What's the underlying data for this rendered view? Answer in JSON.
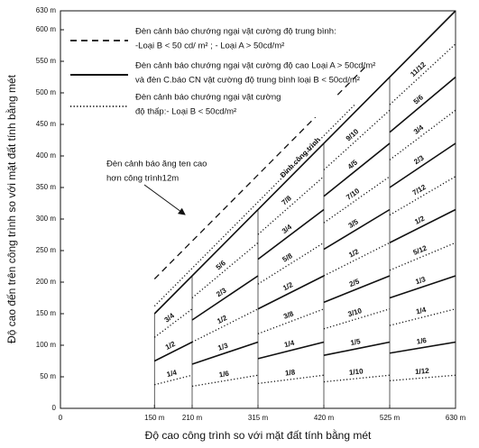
{
  "chart_data": {
    "type": "line",
    "color": "#111111",
    "x_label": "Độ cao công trình so với mặt đất tính bằng mét",
    "y_label": "Độ cao đến trên công trình so với mặt đất tính bằng mét",
    "xlim": [
      0,
      630
    ],
    "ylim": [
      0,
      630
    ],
    "xticks": [
      0,
      {
        "value": 150,
        "label": "150 m"
      },
      {
        "value": 210,
        "label": "210 m"
      },
      {
        "value": 315,
        "label": "315 m"
      },
      {
        "value": 420,
        "label": "420 m"
      },
      {
        "value": 525,
        "label": "525 m"
      },
      {
        "value": 630,
        "label": "630 m"
      }
    ],
    "yticks": [
      0,
      {
        "value": 50,
        "label": "50 m"
      },
      {
        "value": 100,
        "label": "100 m"
      },
      {
        "value": 150,
        "label": "150 m"
      },
      {
        "value": 200,
        "label": "200 m"
      },
      {
        "value": 250,
        "label": "250 m"
      },
      {
        "value": 300,
        "label": "300 m"
      },
      {
        "value": 350,
        "label": "350 m"
      },
      {
        "value": 400,
        "label": "400 m"
      },
      {
        "value": 450,
        "label": "450 m"
      },
      {
        "value": 500,
        "label": "500 m"
      },
      {
        "value": 550,
        "label": "550 m"
      },
      {
        "value": 600,
        "label": "600 m"
      },
      {
        "value": 630,
        "label": "630 m"
      }
    ],
    "legend": [
      {
        "style": "dashed",
        "lines": [
          "Đèn cảnh báo chướng ngại vật cường độ trung bình:",
          "-Loại B  < 50 cd/ m² ;   - Loại A  > 50cd/m²"
        ]
      },
      {
        "style": "solid",
        "lines": [
          "Đèn cảnh báo chướng ngại vật cường độ  cao Loại A > 50cd/m²",
          "và đèn C.báo CN vật cường độ  trung bình loại B < 50cd/m²"
        ]
      },
      {
        "style": "dotted",
        "lines": [
          "Đèn cảnh báo chướng ngại vật cường",
          "độ  thấp:- Loại B < 50cd/m²"
        ]
      }
    ],
    "annotation": [
      "Đèn cảnh báo ăng ten cao",
      "hơn công trình12m"
    ],
    "series": [
      {
        "name": "Đỉnh công trình",
        "style": "solid",
        "x": [
          150,
          630
        ],
        "values": [
          150,
          630
        ]
      },
      {
        "style": "dashed",
        "x": [
          150,
          490
        ],
        "values": [
          205,
          545
        ]
      },
      {
        "style": "dotted",
        "x": [
          150,
          470
        ],
        "values": [
          162,
          482
        ]
      },
      {
        "name": "3/4",
        "style": "dotted",
        "x": [
          150,
          210
        ],
        "values": [
          112.5,
          157.5
        ]
      },
      {
        "name": "1/2",
        "style": "solid",
        "x": [
          150,
          210
        ],
        "values": [
          75,
          105
        ]
      },
      {
        "name": "1/4",
        "style": "dotted",
        "x": [
          150,
          210
        ],
        "values": [
          37.5,
          52.5
        ]
      },
      {
        "name": "5/6",
        "style": "dotted",
        "x": [
          210,
          315
        ],
        "values": [
          175,
          262.5
        ]
      },
      {
        "name": "2/3",
        "style": "solid",
        "x": [
          210,
          315
        ],
        "values": [
          140,
          210
        ]
      },
      {
        "name": "1/2",
        "style": "dotted",
        "x": [
          210,
          315
        ],
        "values": [
          105,
          157.5
        ]
      },
      {
        "name": "1/3",
        "style": "solid",
        "x": [
          210,
          315
        ],
        "values": [
          70,
          105
        ]
      },
      {
        "name": "1/6",
        "style": "dotted",
        "x": [
          210,
          315
        ],
        "values": [
          35,
          52.5
        ]
      },
      {
        "name": "7/8",
        "style": "dotted",
        "x": [
          315,
          420
        ],
        "values": [
          275.6,
          367.5
        ]
      },
      {
        "name": "3/4",
        "style": "solid",
        "x": [
          315,
          420
        ],
        "values": [
          236.3,
          315
        ]
      },
      {
        "name": "5/8",
        "style": "dotted",
        "x": [
          315,
          420
        ],
        "values": [
          196.9,
          262.5
        ]
      },
      {
        "name": "1/2",
        "style": "solid",
        "x": [
          315,
          420
        ],
        "values": [
          157.5,
          210
        ]
      },
      {
        "name": "3/8",
        "style": "dotted",
        "x": [
          315,
          420
        ],
        "values": [
          118.1,
          157.5
        ]
      },
      {
        "name": "1/4",
        "style": "solid",
        "x": [
          315,
          420
        ],
        "values": [
          78.8,
          105
        ]
      },
      {
        "name": "1/8",
        "style": "dotted",
        "x": [
          315,
          420
        ],
        "values": [
          39.4,
          52.5
        ]
      },
      {
        "name": "9/10",
        "style": "dotted",
        "x": [
          420,
          525
        ],
        "values": [
          378,
          472.5
        ]
      },
      {
        "name": "4/5",
        "style": "solid",
        "x": [
          420,
          525
        ],
        "values": [
          336,
          420
        ]
      },
      {
        "name": "7/10",
        "style": "dotted",
        "x": [
          420,
          525
        ],
        "values": [
          294,
          367.5
        ]
      },
      {
        "name": "3/5",
        "style": "solid",
        "x": [
          420,
          525
        ],
        "values": [
          252,
          315
        ]
      },
      {
        "name": "1/2",
        "style": "dotted",
        "x": [
          420,
          525
        ],
        "values": [
          210,
          262.5
        ]
      },
      {
        "name": "2/5",
        "style": "solid",
        "x": [
          420,
          525
        ],
        "values": [
          168,
          210
        ]
      },
      {
        "name": "3/10",
        "style": "dotted",
        "x": [
          420,
          525
        ],
        "values": [
          126,
          157.5
        ]
      },
      {
        "name": "1/5",
        "style": "solid",
        "x": [
          420,
          525
        ],
        "values": [
          84,
          105
        ]
      },
      {
        "name": "1/10",
        "style": "dotted",
        "x": [
          420,
          525
        ],
        "values": [
          42,
          52.5
        ]
      },
      {
        "name": "11/12",
        "style": "dotted",
        "x": [
          525,
          630
        ],
        "values": [
          481.3,
          577.5
        ]
      },
      {
        "name": "5/6",
        "style": "solid",
        "x": [
          525,
          630
        ],
        "values": [
          437.5,
          525
        ]
      },
      {
        "name": "3/4",
        "style": "dotted",
        "x": [
          525,
          630
        ],
        "values": [
          393.8,
          472.5
        ]
      },
      {
        "name": "2/3",
        "style": "solid",
        "x": [
          525,
          630
        ],
        "values": [
          350,
          420
        ]
      },
      {
        "name": "7/12",
        "style": "dotted",
        "x": [
          525,
          630
        ],
        "values": [
          306.3,
          367.5
        ]
      },
      {
        "name": "1/2",
        "style": "solid",
        "x": [
          525,
          630
        ],
        "values": [
          262.5,
          315
        ]
      },
      {
        "name": "5/12",
        "style": "dotted",
        "x": [
          525,
          630
        ],
        "values": [
          218.8,
          262.5
        ]
      },
      {
        "name": "1/3",
        "style": "solid",
        "x": [
          525,
          630
        ],
        "values": [
          175,
          210
        ]
      },
      {
        "name": "1/4",
        "style": "dotted",
        "x": [
          525,
          630
        ],
        "values": [
          131.3,
          157.5
        ]
      },
      {
        "name": "1/6",
        "style": "solid",
        "x": [
          525,
          630
        ],
        "values": [
          87.5,
          105
        ]
      },
      {
        "name": "1/12",
        "style": "dotted",
        "x": [
          525,
          630
        ],
        "values": [
          43.8,
          52.5
        ]
      }
    ]
  }
}
